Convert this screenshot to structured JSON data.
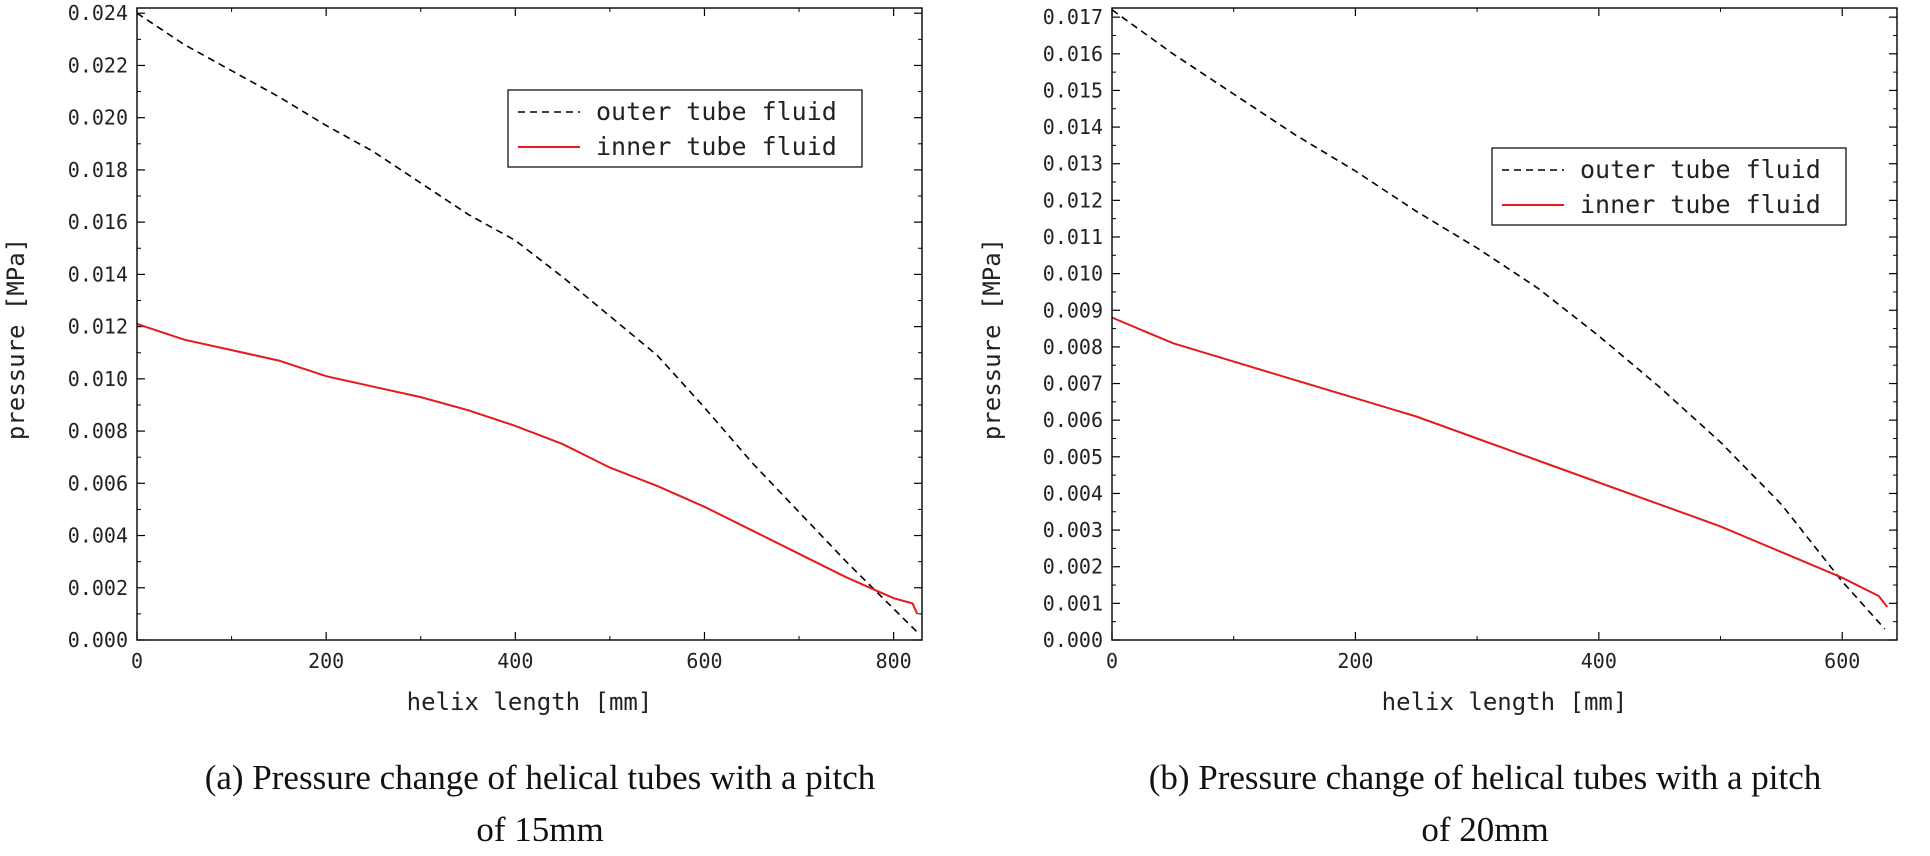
{
  "chart_data": [
    {
      "type": "line",
      "panel": "a",
      "xlabel": "helix length [mm]",
      "ylabel": "pressure [MPa]",
      "xlim": [
        0,
        830
      ],
      "ylim": [
        0,
        0.0242
      ],
      "xticks": [
        "0",
        "200",
        "400",
        "600",
        "800"
      ],
      "xtick_values": [
        0,
        200,
        400,
        600,
        800
      ],
      "yticks": [
        "0.000",
        "0.002",
        "0.004",
        "0.006",
        "0.008",
        "0.010",
        "0.012",
        "0.014",
        "0.016",
        "0.018",
        "0.020",
        "0.022",
        "0.024"
      ],
      "ytick_values": [
        0,
        0.002,
        0.004,
        0.006,
        0.008,
        0.01,
        0.012,
        0.014,
        0.016,
        0.018,
        0.02,
        0.022,
        0.024
      ],
      "legend": "upper right",
      "series": [
        {
          "name": "outer tube fluid",
          "style": "dashed",
          "color": "#000000",
          "x": [
            0,
            50,
            100,
            150,
            200,
            250,
            300,
            350,
            400,
            450,
            500,
            550,
            600,
            650,
            700,
            750,
            800,
            825
          ],
          "y": [
            0.024,
            0.0228,
            0.0218,
            0.0208,
            0.0197,
            0.0187,
            0.0175,
            0.0163,
            0.0153,
            0.0139,
            0.0124,
            0.0109,
            0.0089,
            0.0068,
            0.0049,
            0.003,
            0.0012,
            0.0003
          ]
        },
        {
          "name": "inner tube fluid",
          "style": "solid",
          "color": "#e41a1c",
          "x": [
            0,
            50,
            100,
            150,
            200,
            250,
            300,
            350,
            400,
            450,
            500,
            550,
            600,
            650,
            700,
            750,
            800,
            820,
            825
          ],
          "y": [
            0.0121,
            0.0115,
            0.0111,
            0.0107,
            0.0101,
            0.0097,
            0.0093,
            0.0088,
            0.0082,
            0.0075,
            0.0066,
            0.0059,
            0.0051,
            0.0042,
            0.0033,
            0.0024,
            0.0016,
            0.0014,
            0.001
          ]
        }
      ]
    },
    {
      "type": "line",
      "panel": "b",
      "xlabel": "helix length [mm]",
      "ylabel": "pressure [MPa]",
      "xlim": [
        0,
        645
      ],
      "ylim": [
        0,
        0.01725
      ],
      "xticks": [
        "0",
        "200",
        "400",
        "600"
      ],
      "xtick_values": [
        0,
        200,
        400,
        600
      ],
      "yticks": [
        "0.000",
        "0.001",
        "0.002",
        "0.003",
        "0.004",
        "0.005",
        "0.006",
        "0.007",
        "0.008",
        "0.009",
        "0.010",
        "0.011",
        "0.012",
        "0.013",
        "0.014",
        "0.015",
        "0.016",
        "0.017"
      ],
      "ytick_values": [
        0,
        0.001,
        0.002,
        0.003,
        0.004,
        0.005,
        0.006,
        0.007,
        0.008,
        0.009,
        0.01,
        0.011,
        0.012,
        0.013,
        0.014,
        0.015,
        0.016,
        0.017
      ],
      "legend": "upper right",
      "series": [
        {
          "name": "outer tube fluid",
          "style": "dashed",
          "color": "#000000",
          "x": [
            0,
            50,
            100,
            150,
            200,
            250,
            300,
            350,
            400,
            450,
            500,
            550,
            600,
            635
          ],
          "y": [
            0.0172,
            0.016,
            0.0149,
            0.0138,
            0.0128,
            0.0117,
            0.0107,
            0.0096,
            0.0083,
            0.0069,
            0.0054,
            0.0037,
            0.0016,
            0.0003
          ]
        },
        {
          "name": "inner tube fluid",
          "style": "solid",
          "color": "#e41a1c",
          "x": [
            0,
            50,
            100,
            150,
            200,
            250,
            300,
            350,
            400,
            450,
            500,
            550,
            600,
            630,
            637
          ],
          "y": [
            0.0088,
            0.0081,
            0.0076,
            0.0071,
            0.0066,
            0.0061,
            0.0055,
            0.0049,
            0.0043,
            0.0037,
            0.0031,
            0.0024,
            0.0017,
            0.0012,
            0.0009
          ]
        }
      ]
    }
  ],
  "captions": {
    "a": {
      "line1": "(a) Pressure change of helical tubes with a pitch",
      "line2": "of 15mm"
    },
    "b": {
      "line1": "(b) Pressure change of helical tubes with a pitch",
      "line2": "of 20mm"
    }
  }
}
